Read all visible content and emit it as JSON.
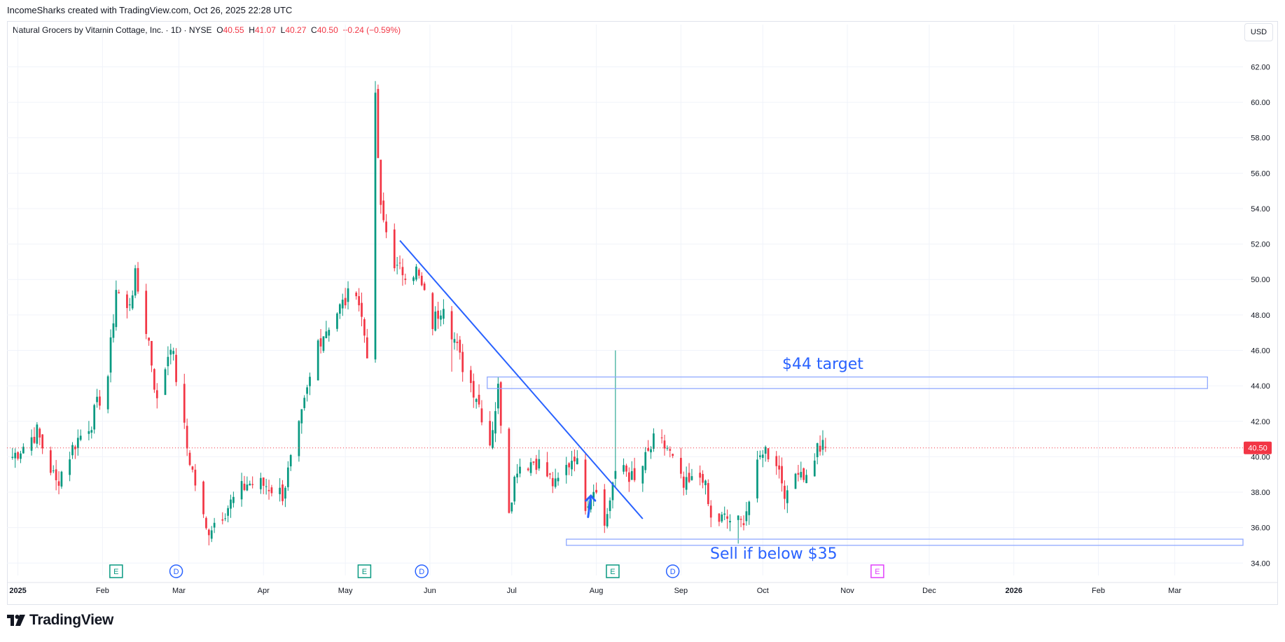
{
  "header": {
    "credit": "IncomeSharks created with TradingView.com, Oct 26, 2025 22:28 UTC"
  },
  "symbol": {
    "name": "Natural Grocers by Vitamin Cottage, Inc. · 1D · NYSE",
    "o_label": "O",
    "o": "40.55",
    "h_label": "H",
    "h": "41.07",
    "l_label": "L",
    "l": "40.27",
    "c_label": "C",
    "c": "40.50",
    "change": "−0.24 (−0.59%)"
  },
  "currency": "USD",
  "brand": {
    "name": "TradingView"
  },
  "colors": {
    "up": "#089981",
    "down": "#f23645",
    "annotation": "#2962ff",
    "grid": "#f0f3fa",
    "axis_text": "#131722",
    "earnings_future": "#e040fb"
  },
  "chart_data": {
    "type": "candlestick",
    "ylim": [
      33.3,
      63.4
    ],
    "y_ticks": [
      "34.00",
      "36.00",
      "38.00",
      "40.00",
      "42.00",
      "44.00",
      "46.00",
      "48.00",
      "50.00",
      "52.00",
      "54.00",
      "56.00",
      "58.00",
      "60.00",
      "62.00"
    ],
    "x_labels": [
      {
        "label": "2025",
        "date": "2025-01-01"
      },
      {
        "label": "Feb",
        "date": "2025-02-01"
      },
      {
        "label": "Mar",
        "date": "2025-03-01"
      },
      {
        "label": "Apr",
        "date": "2025-04-01"
      },
      {
        "label": "May",
        "date": "2025-05-01"
      },
      {
        "label": "Jun",
        "date": "2025-06-01"
      },
      {
        "label": "Jul",
        "date": "2025-07-01"
      },
      {
        "label": "Aug",
        "date": "2025-08-01"
      },
      {
        "label": "Sep",
        "date": "2025-09-01"
      },
      {
        "label": "Oct",
        "date": "2025-10-01"
      },
      {
        "label": "Nov",
        "date": "2025-11-01"
      },
      {
        "label": "Dec",
        "date": "2025-12-01"
      },
      {
        "label": "2026",
        "date": "2026-01-01"
      },
      {
        "label": "Feb",
        "date": "2026-02-01"
      },
      {
        "label": "Mar",
        "date": "2026-03-01"
      }
    ],
    "bold_x_labels": [
      "2025",
      "2026"
    ],
    "x_range": [
      "2024-12-28",
      "2026-03-26"
    ],
    "price_line": 40.5,
    "last_price_label": "40.50",
    "anchors": [
      {
        "date": "2024-12-30",
        "close": 40.0
      },
      {
        "date": "2025-01-08",
        "close": 41.4
      },
      {
        "date": "2025-01-15",
        "close": 38.5
      },
      {
        "date": "2025-01-22",
        "close": 40.8
      },
      {
        "date": "2025-01-28",
        "close": 42.0
      },
      {
        "date": "2025-02-03",
        "close": 44.6
      },
      {
        "date": "2025-02-06",
        "close": 49.5
      },
      {
        "date": "2025-02-10",
        "close": 48.2
      },
      {
        "date": "2025-02-13",
        "close": 50.1
      },
      {
        "date": "2025-02-18",
        "close": 46.5
      },
      {
        "date": "2025-02-21",
        "close": 43.0
      },
      {
        "date": "2025-02-26",
        "close": 46.5
      },
      {
        "date": "2025-03-04",
        "close": 40.5
      },
      {
        "date": "2025-03-11",
        "close": 35.8
      },
      {
        "date": "2025-03-19",
        "close": 37.2
      },
      {
        "date": "2025-03-26",
        "close": 38.5
      },
      {
        "date": "2025-04-02",
        "close": 38.4
      },
      {
        "date": "2025-04-08",
        "close": 37.9
      },
      {
        "date": "2025-04-14",
        "close": 41.5
      },
      {
        "date": "2025-04-21",
        "close": 46.5
      },
      {
        "date": "2025-04-28",
        "close": 48.2
      },
      {
        "date": "2025-05-05",
        "close": 49.6
      },
      {
        "date": "2025-05-09",
        "close": 46.0
      },
      {
        "date": "2025-05-12",
        "close": 60.0
      },
      {
        "date": "2025-05-14",
        "close": 53.8
      },
      {
        "date": "2025-05-20",
        "close": 50.5
      },
      {
        "date": "2025-05-27",
        "close": 50.5
      },
      {
        "date": "2025-06-02",
        "close": 47.5
      },
      {
        "date": "2025-06-06",
        "close": 48.8
      },
      {
        "date": "2025-06-12",
        "close": 45.5
      },
      {
        "date": "2025-06-18",
        "close": 43.5
      },
      {
        "date": "2025-06-23",
        "close": 40.8
      },
      {
        "date": "2025-06-26",
        "close": 43.8
      },
      {
        "date": "2025-06-30",
        "close": 37.2
      },
      {
        "date": "2025-07-03",
        "close": 39.5
      },
      {
        "date": "2025-07-10",
        "close": 39.8
      },
      {
        "date": "2025-07-17",
        "close": 38.3
      },
      {
        "date": "2025-07-24",
        "close": 40.2
      },
      {
        "date": "2025-07-28",
        "close": 37.4
      },
      {
        "date": "2025-08-01",
        "close": 38.5
      },
      {
        "date": "2025-08-04",
        "close": 36.0
      },
      {
        "date": "2025-08-07",
        "close": 38.5
      },
      {
        "date": "2025-08-11",
        "close": 39.5
      },
      {
        "date": "2025-08-15",
        "close": 38.5
      },
      {
        "date": "2025-08-22",
        "close": 40.8
      },
      {
        "date": "2025-08-27",
        "close": 40.5
      },
      {
        "date": "2025-09-02",
        "close": 38.2
      },
      {
        "date": "2025-09-09",
        "close": 39.0
      },
      {
        "date": "2025-09-12",
        "close": 36.4
      },
      {
        "date": "2025-09-18",
        "close": 36.5
      },
      {
        "date": "2025-09-23",
        "close": 36.2
      },
      {
        "date": "2025-09-26",
        "close": 37.5
      },
      {
        "date": "2025-10-01",
        "close": 40.5
      },
      {
        "date": "2025-10-06",
        "close": 39.8
      },
      {
        "date": "2025-10-10",
        "close": 37.6
      },
      {
        "date": "2025-10-14",
        "close": 39.5
      },
      {
        "date": "2025-10-17",
        "close": 38.8
      },
      {
        "date": "2025-10-21",
        "close": 40.5
      },
      {
        "date": "2025-10-24",
        "close": 40.5
      }
    ],
    "spikes": [
      {
        "date": "2025-05-12",
        "high": 61.2
      },
      {
        "date": "2025-05-13",
        "high": 61.0
      },
      {
        "date": "2025-05-14",
        "high": 56.0
      },
      {
        "date": "2025-05-09",
        "low": 45.8
      },
      {
        "date": "2025-06-09",
        "low": 44.8
      },
      {
        "date": "2025-06-26",
        "high": 44.5
      },
      {
        "date": "2025-06-30",
        "low": 36.8
      },
      {
        "date": "2025-08-04",
        "low": 35.7
      },
      {
        "date": "2025-08-08",
        "high": 46.0
      },
      {
        "date": "2025-09-22",
        "low": 35.1
      },
      {
        "date": "2025-03-12",
        "low": 35.0
      }
    ],
    "events": [
      {
        "type": "earnings",
        "label": "E",
        "date": "2025-02-06"
      },
      {
        "type": "dividend",
        "label": "D",
        "date": "2025-02-28"
      },
      {
        "type": "earnings",
        "label": "E",
        "date": "2025-05-08"
      },
      {
        "type": "dividend",
        "label": "D",
        "date": "2025-05-29"
      },
      {
        "type": "earnings",
        "label": "E",
        "date": "2025-08-07"
      },
      {
        "type": "dividend",
        "label": "D",
        "date": "2025-08-29"
      },
      {
        "type": "earnings_future",
        "label": "E",
        "date": "2025-11-12"
      }
    ],
    "trendline": {
      "start": {
        "date": "2025-05-21",
        "price": 52.2
      },
      "end": {
        "date": "2025-08-18",
        "price": 36.5
      }
    },
    "zones": [
      {
        "start": "2025-06-22",
        "end": "2026-03-13",
        "low": 43.85,
        "high": 44.5
      },
      {
        "start": "2025-07-21",
        "end": "2026-03-26",
        "low": 35.0,
        "high": 35.35
      }
    ],
    "annotations": [
      {
        "text": "$44 target",
        "date": "2025-10-23",
        "price": 44.95
      },
      {
        "text": "Sell if below $35",
        "date": "2025-10-05",
        "price": 34.25
      }
    ],
    "arrow": {
      "date": "2025-07-30",
      "from_price": 36.6,
      "to_price": 37.8
    }
  }
}
